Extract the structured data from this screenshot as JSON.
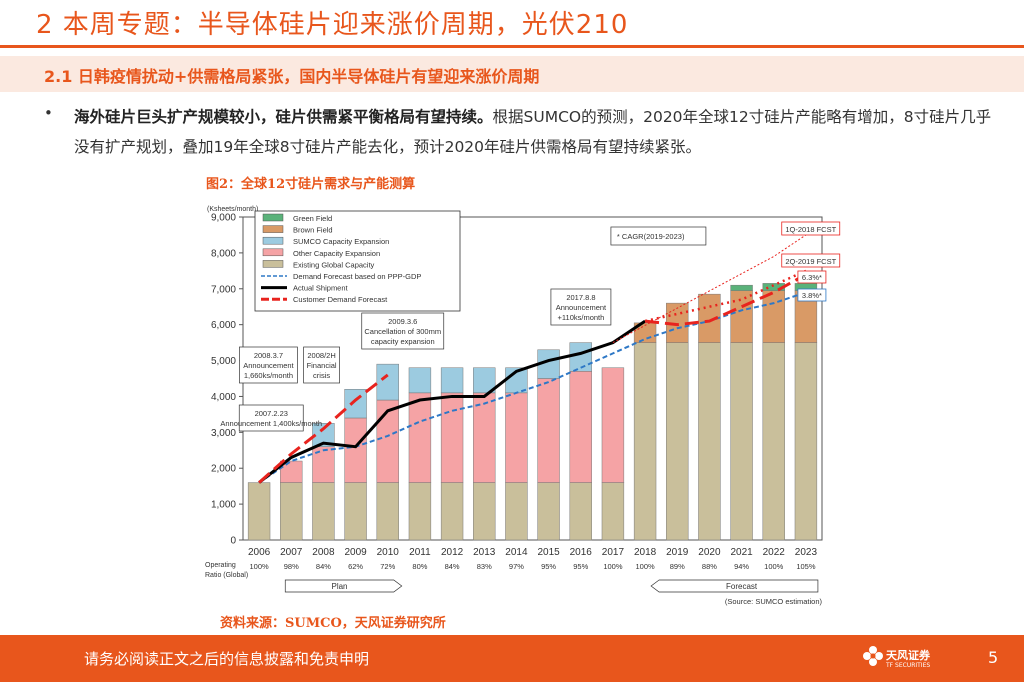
{
  "page": {
    "title": "2 本周专题：半导体硅片迎来涨价周期，光伏210",
    "subtitle": "2.1 日韩疫情扰动+供需格局紧张，国内半导体硅片有望迎来涨价周期",
    "bullet": "•",
    "para_bold": "海外硅片巨头扩产规模较小，硅片供需紧平衡格局有望持续。",
    "para_text": "根据SUMCO的预测，2020年全球12寸硅片产能略有增加，8寸硅片几乎没有扩产规划，叠加19年全球8寸硅片产能去化，预计2020年硅片供需格局有望持续紧张。",
    "figure_title": "图2：全球12寸硅片需求与产能测算",
    "source": "资料来源：SUMCO，天风证券研究所",
    "footer_text": "请务必阅读正文之后的信息披露和免责申明",
    "page_number": "5",
    "logo_text": "天风证券",
    "logo_sub": "TF SECURITIES"
  },
  "colors": {
    "accent": "#e8561c",
    "existing": "#c9bf9b",
    "other": "#f5a3a5",
    "sumco": "#9ccbe0",
    "brown": "#d99a66",
    "green": "#5ab27a",
    "forecast_line": "#2e78c6",
    "actual_line": "#000000",
    "customer_line": "#e8231e",
    "orange_fill": "#f4b13a"
  },
  "chart_data": {
    "type": "bar",
    "title": "图2：全球12寸硅片需求与产能测算",
    "ylabel": "(Ksheets/month)",
    "ylim": [
      0,
      9000
    ],
    "yticks": [
      "0",
      "1,000",
      "2,000",
      "3,000",
      "4,000",
      "5,000",
      "6,000",
      "7,000",
      "8,000",
      "9,000"
    ],
    "categories": [
      "2006",
      "2007",
      "2008",
      "2009",
      "2010",
      "2011",
      "2012",
      "2013",
      "2014",
      "2015",
      "2016",
      "2017",
      "2018",
      "2019",
      "2020",
      "2021",
      "2022",
      "2023"
    ],
    "operating_label": "Operating Ratio (Global)",
    "operating_ratio": [
      "100%",
      "98%",
      "84%",
      "62%",
      "72%",
      "80%",
      "84%",
      "83%",
      "97%",
      "95%",
      "95%",
      "100%",
      "100%",
      "89%",
      "88%",
      "94%",
      "100%",
      "105%"
    ],
    "series": [
      {
        "name": "Existing Global Capacity",
        "color_key": "existing",
        "values": [
          1600,
          1600,
          1600,
          1600,
          1600,
          1600,
          1600,
          1600,
          1600,
          1600,
          1600,
          1600,
          5500,
          5500,
          5500,
          5500,
          5500,
          5500
        ]
      },
      {
        "name": "Other Capacity Expansion",
        "color_key": "other",
        "values": [
          0,
          600,
          1000,
          1800,
          2300,
          2500,
          2500,
          2500,
          2500,
          2900,
          3100,
          3200,
          0,
          0,
          0,
          0,
          0,
          0
        ]
      },
      {
        "name": "SUMCO Capacity Expansion",
        "color_key": "sumco",
        "values": [
          0,
          0,
          650,
          800,
          1000,
          700,
          700,
          700,
          700,
          800,
          800,
          0,
          0,
          0,
          0,
          0,
          0,
          0
        ]
      },
      {
        "name": "Brown Field",
        "color_key": "brown",
        "values": [
          0,
          0,
          0,
          0,
          0,
          0,
          0,
          0,
          0,
          0,
          0,
          0,
          550,
          1100,
          1350,
          1450,
          1450,
          1450
        ]
      },
      {
        "name": "Green Field",
        "color_key": "green",
        "values": [
          0,
          0,
          0,
          0,
          0,
          0,
          0,
          0,
          0,
          0,
          0,
          0,
          0,
          0,
          0,
          150,
          200,
          200
        ]
      }
    ],
    "lines": [
      {
        "name": "Demand Forecast based on PPP-GDP",
        "color_key": "forecast_line",
        "dash": "5,3",
        "values": [
          1600,
          2200,
          2500,
          2600,
          2900,
          3300,
          3600,
          3800,
          4100,
          4400,
          4800,
          5200,
          5600,
          5900,
          6100,
          6400,
          6600,
          6900
        ]
      },
      {
        "name": "Actual Shipment",
        "color_key": "actual_line",
        "dash": "",
        "values": [
          1600,
          2300,
          2700,
          2600,
          3600,
          3900,
          4000,
          4000,
          4700,
          5000,
          5200,
          5500,
          6100,
          null,
          null,
          null,
          null,
          null
        ]
      },
      {
        "name": "Customer Demand Forecast",
        "color_key": "customer_line",
        "dash": "14,6",
        "values": [
          1600,
          2400,
          3100,
          3900,
          4600,
          null,
          null,
          null,
          null,
          null,
          null,
          null,
          6100,
          6000,
          6100,
          6500,
          6900,
          7400
        ]
      }
    ],
    "legend": [
      "Green Field",
      "Brown Field",
      "SUMCO Capacity Expansion",
      "Other Capacity Expansion",
      "Existing Global Capacity",
      "Demand Forecast based on PPP-GDP",
      "Actual Shipment",
      "Customer Demand Forecast"
    ],
    "cagr_note": "* CAGR(2019-2023)",
    "annotations": [
      {
        "text": "2007.2.23 Announcement 1,400ks/month",
        "cat": "2007"
      },
      {
        "text": "2008.3.7 Announcement 1,660ks/month",
        "cat": "2008"
      },
      {
        "text": "2008/2H Financial crisis",
        "cat": "2009"
      },
      {
        "text": "2009.3.6 Cancellation of 300mm capacity expansion",
        "cat": "2010"
      },
      {
        "text": "2017.8.8 Announcement +110ks/month",
        "cat": "2017"
      },
      {
        "text": "1Q-2018 FCST",
        "cat": "2023"
      },
      {
        "text": "2Q-2019 FCST",
        "cat": "2023"
      },
      {
        "text": "6.3%*",
        "cat": "2023"
      },
      {
        "text": "3.8%*",
        "cat": "2023"
      }
    ],
    "plan_label": "Plan",
    "forecast_label": "Forecast",
    "source_note": "(Source: SUMCO estimation)"
  }
}
